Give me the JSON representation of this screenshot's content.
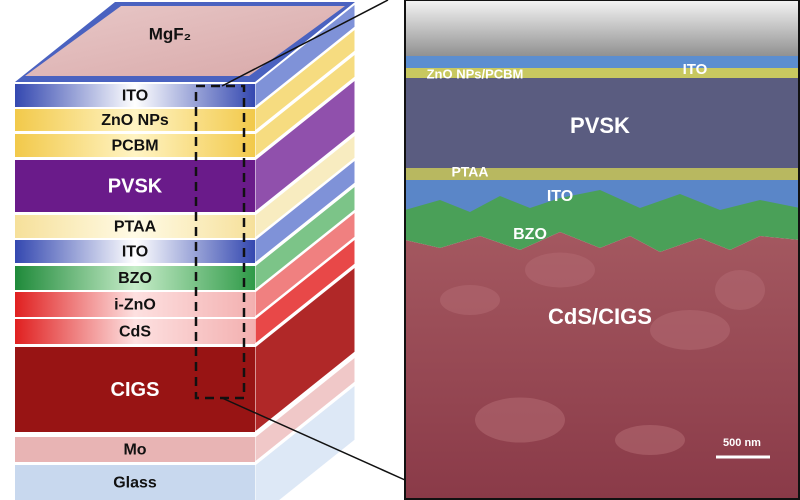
{
  "stack": {
    "layers": [
      "MgF₂",
      "ITO",
      "ZnO NPs",
      "PCBM",
      "PVSK",
      "PTAA",
      "ITO",
      "BZO",
      "i-ZnO",
      "CdS",
      "CIGS",
      "Mo",
      "Glass"
    ]
  },
  "sem": {
    "labels": [
      "ZnO NPs/PCBM",
      "ITO",
      "PVSK",
      "PTAA",
      "ITO",
      "BZO",
      "CdS/CIGS"
    ],
    "scale_bar": "500 nm"
  }
}
